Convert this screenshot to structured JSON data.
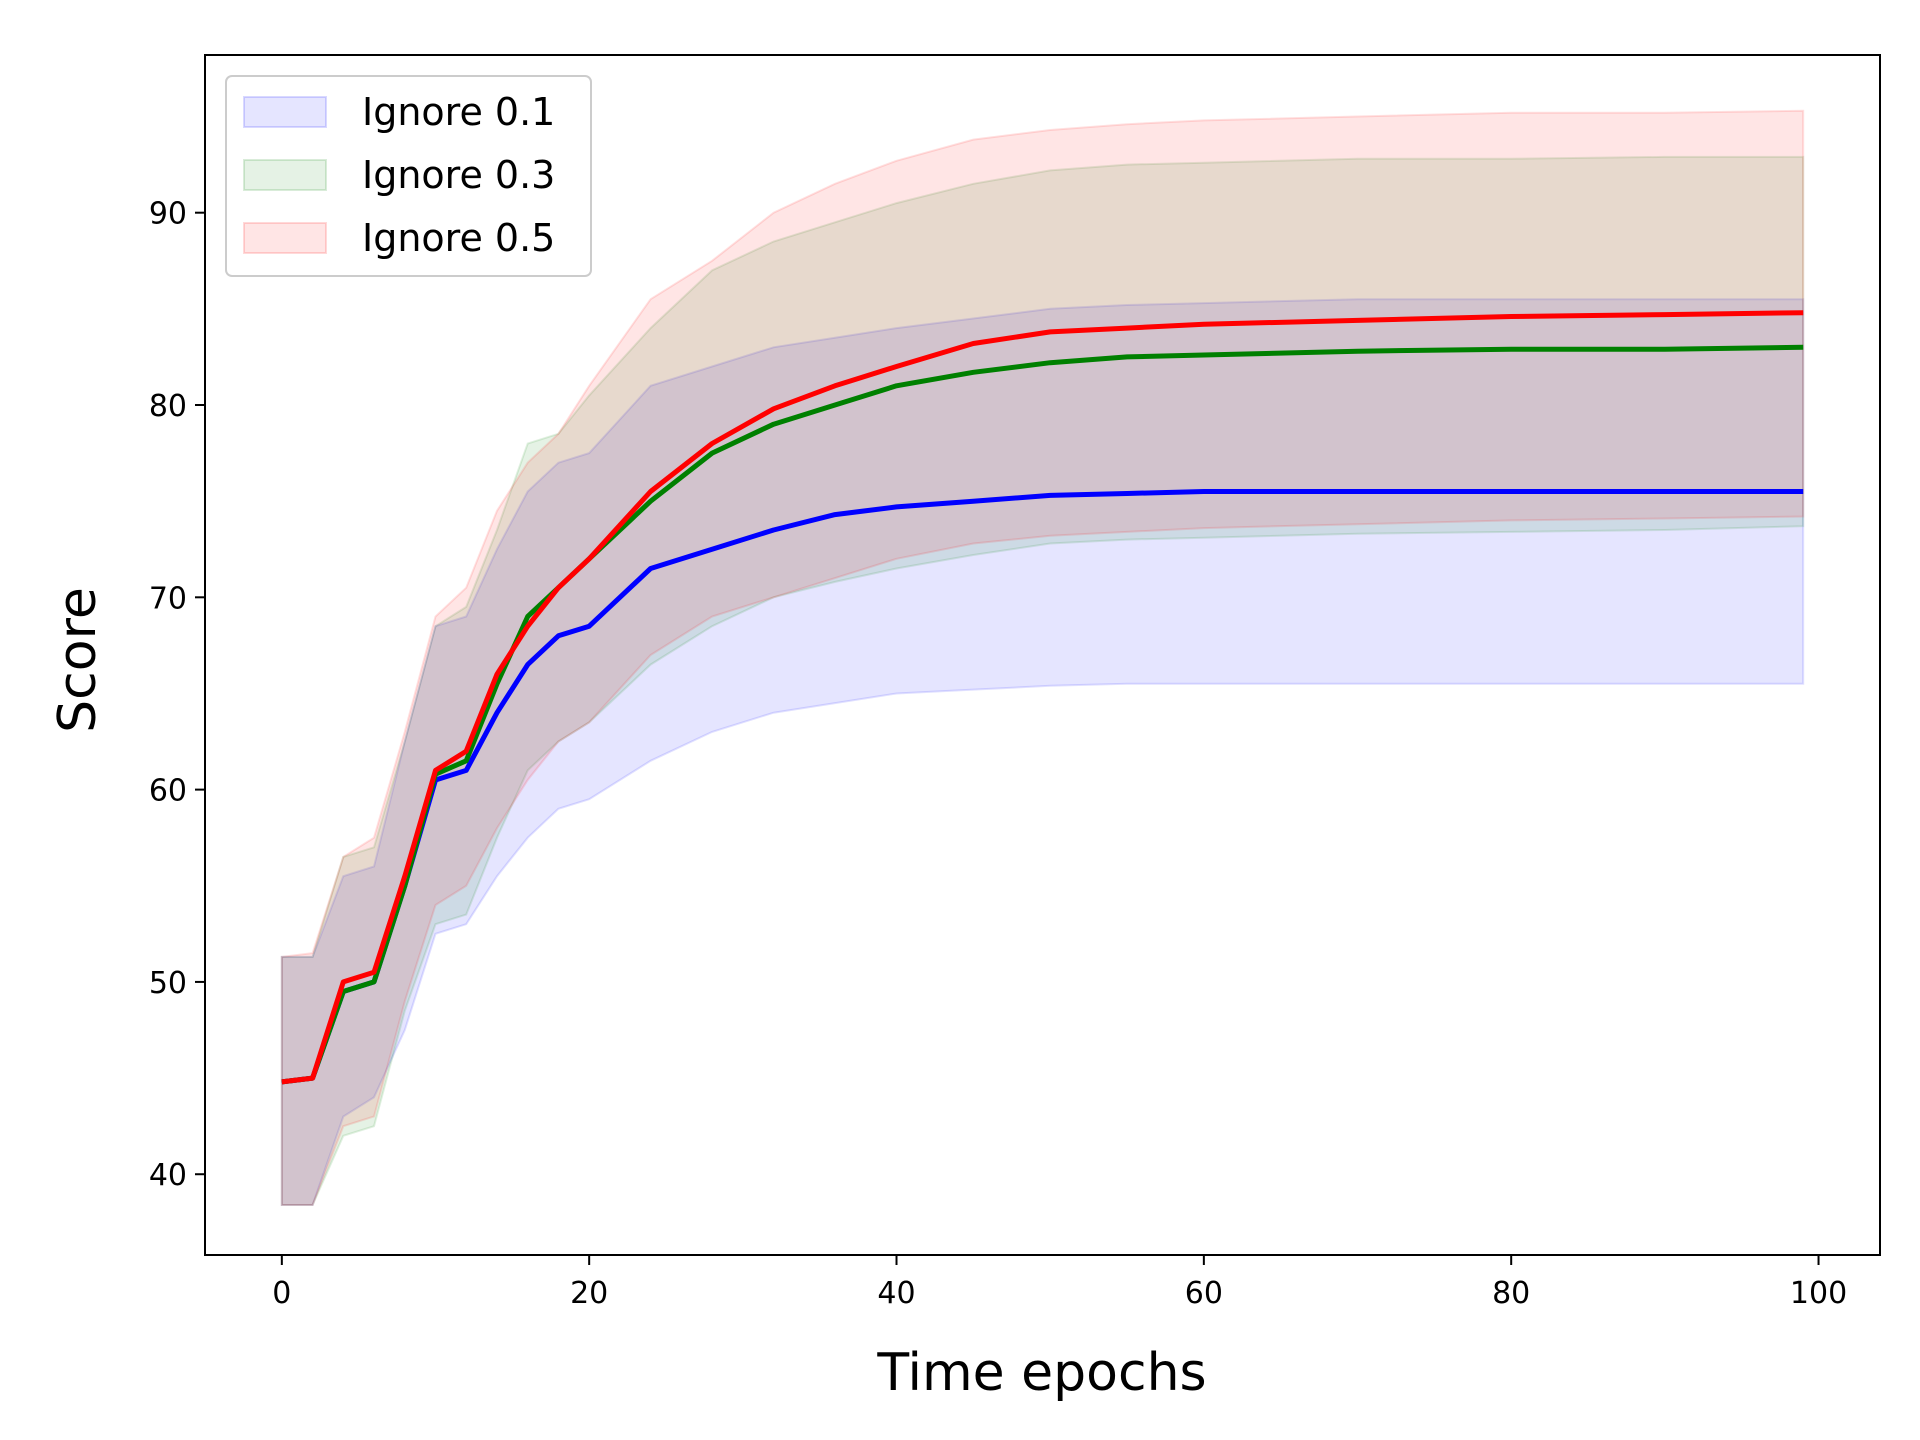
{
  "chart_data": {
    "type": "line",
    "xlabel": "Time epochs",
    "ylabel": "Score",
    "xlim": [
      -5,
      104
    ],
    "ylim": [
      35.8,
      98.2
    ],
    "xticks": [
      0,
      20,
      40,
      60,
      80,
      100
    ],
    "yticks": [
      40,
      50,
      60,
      70,
      80,
      90
    ],
    "grid": false,
    "legend_position": "top-left",
    "series": [
      {
        "name": "Ignore 0.1",
        "color": "#0000ff",
        "fill_color": "#0000ff",
        "x": [
          0,
          2,
          4,
          6,
          8,
          10,
          12,
          14,
          16,
          18,
          20,
          24,
          28,
          32,
          36,
          40,
          45,
          50,
          55,
          60,
          70,
          80,
          90,
          99
        ],
        "mean": [
          44.8,
          45.0,
          49.5,
          50.0,
          55.0,
          60.5,
          61.0,
          64.0,
          66.5,
          68.0,
          68.5,
          71.5,
          72.5,
          73.5,
          74.3,
          74.7,
          75.0,
          75.3,
          75.4,
          75.5,
          75.5,
          75.5,
          75.5,
          75.5
        ],
        "lower": [
          38.4,
          38.4,
          43.0,
          44.0,
          47.5,
          52.5,
          53.0,
          55.5,
          57.5,
          59.0,
          59.5,
          61.5,
          63.0,
          64.0,
          64.5,
          65.0,
          65.2,
          65.4,
          65.5,
          65.5,
          65.5,
          65.5,
          65.5,
          65.5
        ],
        "upper": [
          51.3,
          51.3,
          55.5,
          56.0,
          62.5,
          68.5,
          69.0,
          72.5,
          75.5,
          77.0,
          77.5,
          81.0,
          82.0,
          83.0,
          83.5,
          84.0,
          84.5,
          85.0,
          85.2,
          85.3,
          85.5,
          85.5,
          85.5,
          85.5
        ]
      },
      {
        "name": "Ignore 0.3",
        "color": "#008000",
        "fill_color": "#008000",
        "x": [
          0,
          2,
          4,
          6,
          8,
          10,
          12,
          14,
          16,
          18,
          20,
          24,
          28,
          32,
          36,
          40,
          45,
          50,
          55,
          60,
          70,
          80,
          90,
          99
        ],
        "mean": [
          44.8,
          45.0,
          49.5,
          50.0,
          55.0,
          60.8,
          61.5,
          65.5,
          69.0,
          70.5,
          72.0,
          75.0,
          77.5,
          79.0,
          80.0,
          81.0,
          81.7,
          82.2,
          82.5,
          82.6,
          82.8,
          82.9,
          82.9,
          83.0
        ],
        "lower": [
          38.4,
          38.4,
          42.0,
          42.5,
          48.5,
          53.0,
          53.5,
          57.5,
          61.0,
          62.5,
          63.5,
          66.5,
          68.5,
          70.0,
          70.8,
          71.5,
          72.2,
          72.8,
          73.0,
          73.1,
          73.3,
          73.4,
          73.5,
          73.7
        ],
        "upper": [
          51.3,
          51.3,
          56.5,
          57.0,
          62.5,
          68.5,
          69.5,
          73.5,
          78.0,
          78.5,
          80.5,
          84.0,
          87.0,
          88.5,
          89.5,
          90.5,
          91.5,
          92.2,
          92.5,
          92.6,
          92.8,
          92.8,
          92.9,
          92.9
        ]
      },
      {
        "name": "Ignore 0.5",
        "color": "#ff0000",
        "fill_color": "#ff0000",
        "x": [
          0,
          2,
          4,
          6,
          8,
          10,
          12,
          14,
          16,
          18,
          20,
          24,
          28,
          32,
          36,
          40,
          45,
          50,
          55,
          60,
          70,
          80,
          90,
          99
        ],
        "mean": [
          44.8,
          45.0,
          50.0,
          50.5,
          55.5,
          61.0,
          62.0,
          66.0,
          68.5,
          70.5,
          72.0,
          75.5,
          78.0,
          79.8,
          81.0,
          82.0,
          83.2,
          83.8,
          84.0,
          84.2,
          84.4,
          84.6,
          84.7,
          84.8
        ],
        "lower": [
          38.4,
          38.4,
          42.5,
          43.0,
          49.0,
          54.0,
          55.0,
          58.0,
          60.5,
          62.5,
          63.5,
          67.0,
          69.0,
          70.0,
          71.0,
          72.0,
          72.8,
          73.2,
          73.4,
          73.6,
          73.8,
          74.0,
          74.1,
          74.2
        ],
        "upper": [
          51.3,
          51.5,
          56.5,
          57.5,
          63.0,
          69.0,
          70.5,
          74.5,
          77.0,
          78.5,
          81.0,
          85.5,
          87.5,
          90.0,
          91.5,
          92.7,
          93.8,
          94.3,
          94.6,
          94.8,
          95.0,
          95.2,
          95.2,
          95.3
        ]
      }
    ]
  }
}
